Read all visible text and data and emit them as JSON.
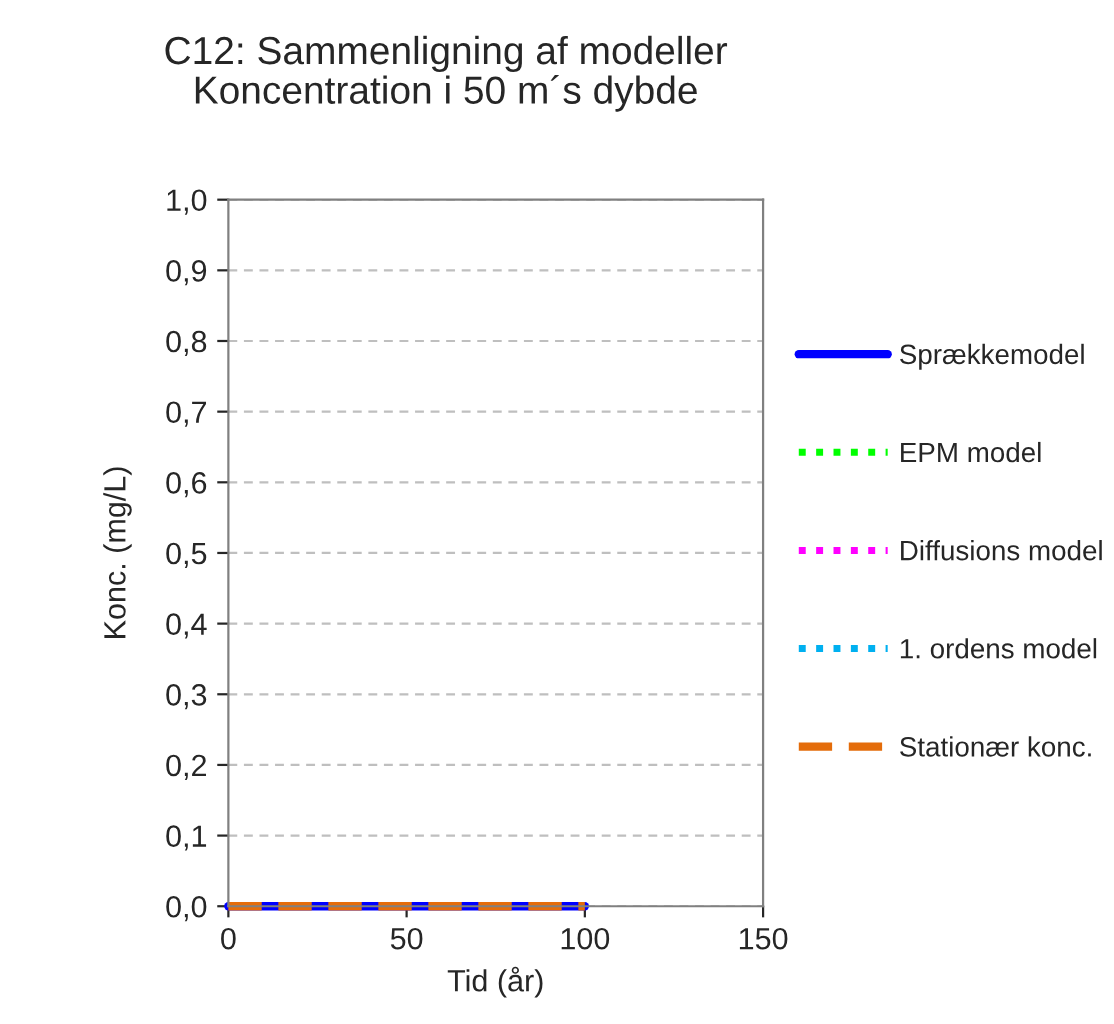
{
  "chart_data": {
    "type": "line",
    "title": "C12: Sammenligning af modeller\nKoncentration i 50 m´s dybde",
    "xlabel": "Tid (år)",
    "ylabel": "Konc. (mg/L)",
    "x": [
      0,
      100
    ],
    "series": [
      {
        "name": "Sprækkemodel",
        "color": "#0000ff",
        "values": [
          0,
          0
        ],
        "line_style": "solid"
      },
      {
        "name": "EPM model",
        "color": "#00ff00",
        "values": [
          null,
          null
        ],
        "line_style": "dotted"
      },
      {
        "name": "Diffusions model",
        "color": "#ff00ff",
        "values": [
          null,
          null
        ],
        "line_style": "dotted"
      },
      {
        "name": "1. ordens model",
        "color": "#00b0f0",
        "values": [
          null,
          null
        ],
        "line_style": "dotted"
      },
      {
        "name": "Stationær konc.",
        "color": "#e46c0a",
        "values": [
          0,
          0
        ],
        "line_style": "dashed"
      }
    ],
    "xlim": [
      0,
      150
    ],
    "xticks": [
      0,
      50,
      100,
      150
    ],
    "ylim": [
      0,
      1
    ],
    "yticks": [
      {
        "value": 0,
        "label": "0,0"
      },
      {
        "value": 0.1,
        "label": "0,1"
      },
      {
        "value": 0.2,
        "label": "0,2"
      },
      {
        "value": 0.3,
        "label": "0,3"
      },
      {
        "value": 0.4,
        "label": "0,4"
      },
      {
        "value": 0.5,
        "label": "0,5"
      },
      {
        "value": 0.6,
        "label": "0,6"
      },
      {
        "value": 0.7,
        "label": "0,7"
      },
      {
        "value": 0.8,
        "label": "0,8"
      },
      {
        "value": 0.9,
        "label": "0,9"
      },
      {
        "value": 1,
        "label": "1,0"
      }
    ],
    "grid": "y",
    "legend": "right"
  }
}
